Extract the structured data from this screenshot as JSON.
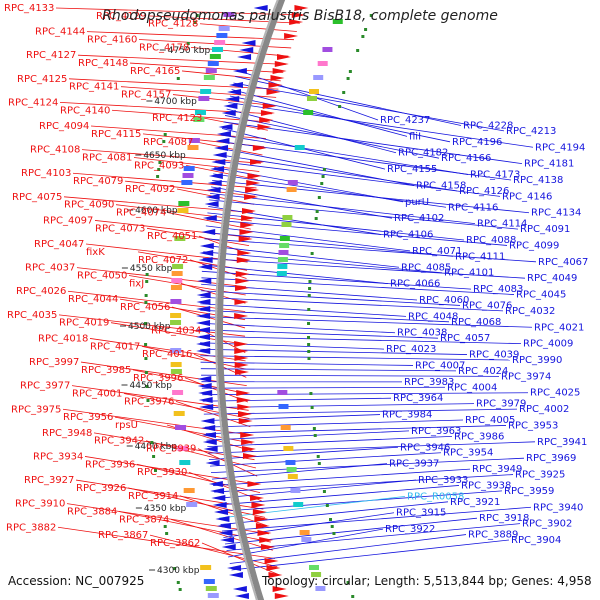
{
  "title": "Rhodopseudomonas palustris BisB18, complete genome",
  "accession": "Accession: NC_007925",
  "topology": "Topology: circular; Length: 5,513,844 bp; Genes: 4,958",
  "colors": {
    "forward": "#ee1111",
    "reverse": "#1515dd",
    "rna": "#33bbee",
    "backbone": "#888888",
    "tick": "#333333",
    "gc_green": "#2a8a2a"
  },
  "scale_ticks": [
    {
      "label": "4750 kbp"
    },
    {
      "label": "4700 kbp"
    },
    {
      "label": "4650 kbp"
    },
    {
      "label": "4600 kbp"
    },
    {
      "label": "4550 kbp"
    },
    {
      "label": "4500 kbp"
    },
    {
      "label": "4450 kbp"
    },
    {
      "label": "4400 kbp"
    },
    {
      "label": "4350 kbp"
    },
    {
      "label": "4300 kbp"
    }
  ],
  "left_labels": [
    "RPC_4133",
    "RPC_4129",
    "RPC_4128",
    "RPC_4144",
    "RPC_4160",
    "RPC_4178",
    "RPC_4127",
    "RPC_4148",
    "RPC_4165",
    "RPC_4125",
    "RPC_4141",
    "RPC_4157",
    "RPC_4124",
    "RPC_4140",
    "RPC_4123",
    "RPC_4094",
    "RPC_4115",
    "RPC_4087",
    "RPC_4108",
    "RPC_4081",
    "RPC_4093",
    "RPC_4103",
    "RPC_4079",
    "RPC_4092",
    "RPC_4075",
    "RPC_4090",
    "RPC_4074",
    "RPC_4097",
    "RPC_4073",
    "RPC_4051",
    "RPC_4047",
    "fixK",
    "RPC_4072",
    "RPC_4037",
    "RPC_4050",
    "fixJ",
    "RPC_4026",
    "RPC_4044",
    "RPC_4056",
    "RPC_4035",
    "RPC_4019",
    "RPC_4034",
    "RPC_4018",
    "RPC_4017",
    "RPC_4016",
    "RPC_3997",
    "RPC_3985",
    "RPC_3996",
    "RPC_3977",
    "RPC_4001",
    "RPC_3976",
    "RPC_3975",
    "RPC_3956",
    "rpsU",
    "RPC_3948",
    "RPC_3942",
    "RPC_3939",
    "RPC_3934",
    "RPC_3936",
    "RPC_3930",
    "RPC_3927",
    "RPC_3926",
    "RPC_3914",
    "RPC_3910",
    "RPC_3884",
    "RPC_3874",
    "RPC_3882",
    "RPC_3867",
    "RPC_3862"
  ],
  "right_labels": [
    "RPC_4237",
    "RPC_4228",
    "RPC_4213",
    "fliI",
    "RPC_4196",
    "RPC_4194",
    "RPC_4182",
    "RPC_4166",
    "RPC_4181",
    "RPC_4155",
    "RPC_4173",
    "RPC_4138",
    "RPC_4158",
    "RPC_4126",
    "RPC_4146",
    "purU",
    "RPC_4116",
    "RPC_4134",
    "RPC_4102",
    "RPC_4114",
    "RPC_4091",
    "RPC_4106",
    "RPC_4088",
    "RPC_4099",
    "RPC_4071",
    "RPC_4111",
    "RPC_4067",
    "RPC_4085",
    "RPC_4101",
    "RPC_4049",
    "RPC_4066",
    "RPC_4083",
    "RPC_4045",
    "RPC_4060",
    "RPC_4076",
    "RPC_4032",
    "RPC_4048",
    "RPC_4068",
    "RPC_4021",
    "RPC_4038",
    "RPC_4057",
    "RPC_4009",
    "RPC_4023",
    "RPC_4039",
    "RPC_3990",
    "RPC_4007",
    "RPC_4024",
    "RPC_3974",
    "RPC_3983",
    "RPC_4004",
    "RPC_4025",
    "RPC_3964",
    "RPC_3979",
    "RPC_4002",
    "RPC_3984",
    "RPC_4005",
    "RPC_3953",
    "RPC_3963",
    "RPC_3986",
    "RPC_3941",
    "RPC_3946",
    "RPC_3954",
    "RPC_3969",
    "RPC_3937",
    "RPC_3949",
    "RPC_3925",
    "RPC_3933",
    "RPC_3938",
    "RPC_3959",
    "RPC_R0058",
    "RPC_3921",
    "RPC_3940",
    "RPC_3915",
    "RPC_3918",
    "RPC_3902",
    "RPC_3922",
    "RPC_3889",
    "RPC_3904"
  ]
}
